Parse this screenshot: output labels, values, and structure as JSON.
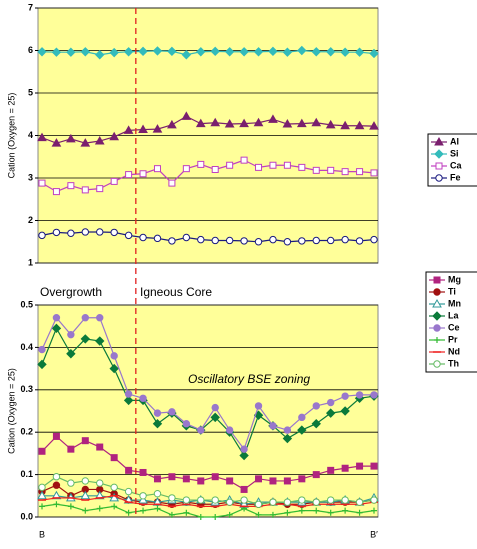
{
  "chart_data": [
    {
      "type": "line",
      "y_label": "Cation (Oxygen = 25)",
      "ylim": [
        1,
        7
      ],
      "yticks": [
        1,
        2,
        3,
        4,
        5,
        6,
        7
      ],
      "grid": true,
      "legend": "right",
      "categories": [
        null,
        null,
        null,
        null,
        null,
        null,
        null,
        null,
        null,
        null,
        null,
        null,
        null,
        null,
        null,
        null,
        null,
        null,
        null,
        null,
        null,
        null,
        null,
        null
      ],
      "series": [
        {
          "name": "Al",
          "color": "#7a1f6e",
          "marker": "triangle",
          "filled": true,
          "values": [
            3.95,
            3.82,
            3.92,
            3.82,
            3.87,
            3.97,
            4.12,
            4.14,
            4.15,
            4.25,
            4.45,
            4.28,
            4.3,
            4.27,
            4.28,
            4.3,
            4.38,
            4.27,
            4.28,
            4.3,
            4.25,
            4.23,
            4.23,
            4.22
          ]
        },
        {
          "name": "Si",
          "color": "#33bbbb",
          "marker": "diamond",
          "filled": true,
          "values": [
            5.97,
            5.96,
            5.96,
            5.97,
            5.9,
            5.95,
            5.97,
            5.98,
            5.99,
            5.98,
            5.9,
            5.97,
            5.98,
            5.97,
            5.97,
            5.97,
            5.98,
            5.96,
            6.0,
            5.97,
            5.97,
            5.96,
            5.96,
            5.93
          ]
        },
        {
          "name": "Ca",
          "color": "#c040c0",
          "marker": "square",
          "filled": false,
          "values": [
            2.88,
            2.68,
            2.82,
            2.72,
            2.75,
            2.92,
            3.08,
            3.1,
            3.22,
            2.88,
            3.22,
            3.32,
            3.2,
            3.3,
            3.42,
            3.25,
            3.3,
            3.3,
            3.25,
            3.18,
            3.18,
            3.15,
            3.15,
            3.12
          ]
        },
        {
          "name": "Fe",
          "color": "#1a1a80",
          "marker": "circle",
          "filled": false,
          "values": [
            1.65,
            1.72,
            1.7,
            1.73,
            1.73,
            1.72,
            1.65,
            1.6,
            1.58,
            1.52,
            1.6,
            1.55,
            1.53,
            1.53,
            1.52,
            1.5,
            1.55,
            1.5,
            1.52,
            1.53,
            1.53,
            1.55,
            1.52,
            1.55
          ]
        }
      ]
    },
    {
      "type": "line",
      "y_label": "Cation (Oxygen = 25)",
      "ylim": [
        0,
        0.5
      ],
      "yticks": [
        {
          "value": 0,
          "label": "0.0"
        },
        0.1,
        0.2,
        0.3,
        0.4,
        0.5
      ],
      "grid": true,
      "legend": "right",
      "annotations": [
        "Overgrowth",
        "Igneous Core",
        "Oscillatory BSE zoning"
      ],
      "categories": [
        "B",
        null,
        null,
        null,
        null,
        null,
        null,
        null,
        null,
        null,
        null,
        null,
        null,
        null,
        null,
        null,
        null,
        null,
        null,
        null,
        null,
        null,
        null,
        "B′"
      ],
      "series": [
        {
          "name": "Mg",
          "color": "#b0237f",
          "marker": "square",
          "filled": true,
          "values": [
            0.155,
            0.19,
            0.16,
            0.18,
            0.165,
            0.14,
            0.11,
            0.105,
            0.09,
            0.095,
            0.09,
            0.085,
            0.095,
            0.085,
            0.065,
            0.09,
            0.085,
            0.085,
            0.09,
            0.1,
            0.11,
            0.115,
            0.12,
            0.12
          ]
        },
        {
          "name": "Ti",
          "color": "#a01010",
          "marker": "circle",
          "filled": true,
          "values": [
            0.06,
            0.075,
            0.05,
            0.065,
            0.065,
            0.055,
            0.04,
            0.035,
            0.035,
            0.03,
            0.035,
            0.03,
            0.03,
            0.035,
            0.03,
            0.03,
            0.035,
            0.03,
            0.03,
            0.035,
            0.035,
            0.035,
            0.035,
            0.04
          ]
        },
        {
          "name": "Mn",
          "color": "#339999",
          "marker": "triangle",
          "filled": false,
          "values": [
            0.05,
            0.05,
            0.045,
            0.05,
            0.05,
            0.045,
            0.04,
            0.04,
            0.035,
            0.04,
            0.035,
            0.04,
            0.035,
            0.04,
            0.03,
            0.035,
            0.035,
            0.035,
            0.035,
            0.035,
            0.035,
            0.04,
            0.035,
            0.045
          ]
        },
        {
          "name": "La",
          "color": "#0a7a3a",
          "marker": "diamond",
          "filled": true,
          "values": [
            0.36,
            0.445,
            0.385,
            0.42,
            0.415,
            0.35,
            0.275,
            0.275,
            0.22,
            0.245,
            0.215,
            0.205,
            0.235,
            0.2,
            0.145,
            0.24,
            0.215,
            0.185,
            0.205,
            0.22,
            0.245,
            0.25,
            0.28,
            0.285
          ]
        },
        {
          "name": "Ce",
          "color": "#9977cc",
          "marker": "circle",
          "filled": true,
          "values": [
            0.395,
            0.47,
            0.43,
            0.47,
            0.47,
            0.38,
            0.29,
            0.28,
            0.245,
            0.248,
            0.22,
            0.205,
            0.258,
            0.205,
            0.16,
            0.262,
            0.215,
            0.205,
            0.235,
            0.262,
            0.27,
            0.285,
            0.288,
            0.288
          ]
        },
        {
          "name": "Pr",
          "color": "#33bb33",
          "marker": "plus",
          "filled": true,
          "values": [
            0.025,
            0.03,
            0.025,
            0.015,
            0.02,
            0.025,
            0.01,
            0.015,
            0.02,
            0.005,
            0.01,
            0,
            0,
            0.005,
            0.02,
            0.005,
            0.005,
            0.01,
            0.015,
            0.015,
            0.01,
            0.015,
            0.01,
            0.015
          ]
        },
        {
          "name": "Nd",
          "color": "#ee2020",
          "marker": "dash",
          "filled": true,
          "values": [
            0.04,
            0.045,
            0.045,
            0.04,
            0.045,
            0.05,
            0.035,
            0.03,
            0.03,
            0.025,
            0.03,
            0.025,
            0.025,
            0.03,
            0.025,
            0.025,
            0.03,
            0.03,
            0.025,
            0.03,
            0.03,
            0.03,
            0.03,
            0.035
          ]
        },
        {
          "name": "Th",
          "color": "#66bb66",
          "marker": "circle",
          "filled": false,
          "values": [
            0.07,
            0.095,
            0.08,
            0.085,
            0.08,
            0.07,
            0.06,
            0.05,
            0.055,
            0.045,
            0.04,
            0.04,
            0.04,
            0.035,
            0.04,
            0.03,
            0.035,
            0.035,
            0.04,
            0.035,
            0.04,
            0.04,
            0.035,
            0.04
          ]
        }
      ]
    }
  ]
}
